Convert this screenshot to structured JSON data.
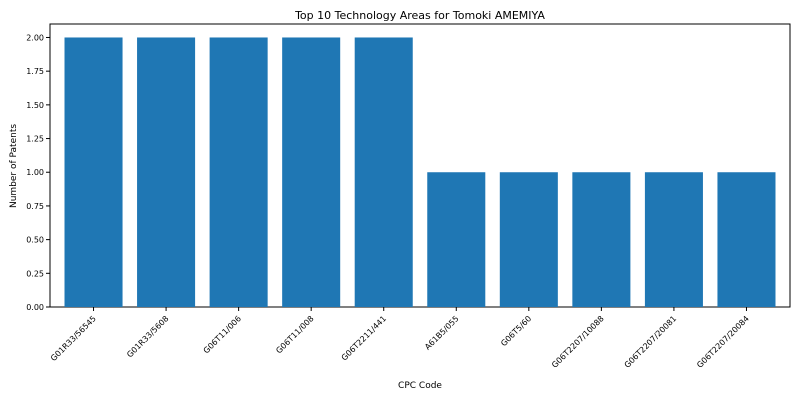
{
  "chart_data": {
    "type": "bar",
    "title": "Top 10 Technology Areas for Tomoki AMEMIYA",
    "xlabel": "CPC Code",
    "ylabel": "Number of Patents",
    "categories": [
      "G01R33/56545",
      "G01R33/5608",
      "G06T11/006",
      "G06T11/008",
      "G06T2211/441",
      "A61B5/055",
      "G06T5/60",
      "G06T2207/10088",
      "G06T2207/20081",
      "G06T2207/20084"
    ],
    "values": [
      2,
      2,
      2,
      2,
      2,
      1,
      1,
      1,
      1,
      1
    ],
    "ylim": [
      0,
      2.1
    ],
    "yticks": [
      "0.00",
      "0.25",
      "0.50",
      "0.75",
      "1.00",
      "1.25",
      "1.50",
      "1.75",
      "2.00"
    ],
    "bar_color": "#1f77b4",
    "grid": false
  }
}
